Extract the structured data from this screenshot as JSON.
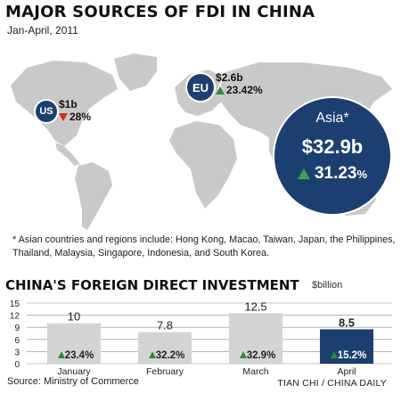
{
  "header": {
    "title": "MAJOR SOURCES OF FDI IN CHINA",
    "subtitle": "Jan-April, 2011"
  },
  "map": {
    "us": {
      "badge": "US",
      "amount": "$1b",
      "change": "28%",
      "direction": "down"
    },
    "eu": {
      "badge": "EU",
      "amount": "$2.6b",
      "change": "23.42%",
      "direction": "up"
    },
    "asia": {
      "region": "Asia*",
      "amount": "$32.9b",
      "change": "31.23",
      "change_unit": "%",
      "direction": "up"
    },
    "footnote": "* Asian countries and regions include: Hong Kong, Macao, Taiwan, Japan, the Philippines, Thailand, Malaysia, Singapore, Indonesia, and South Korea.",
    "colors": {
      "land": "#c9c9c9",
      "badge": "#1b3f70",
      "up": "#2e8b3a",
      "down": "#d22a1f"
    }
  },
  "chart_data": {
    "type": "bar",
    "title": "CHINA'S FOREIGN DIRECT INVESTMENT",
    "unit": "$billion",
    "categories": [
      "January",
      "February",
      "March",
      "April"
    ],
    "values": [
      10,
      7.8,
      12.5,
      8.5
    ],
    "value_labels": [
      "10",
      "7.8",
      "12.5",
      "8.5"
    ],
    "growth_labels": [
      "23.4%",
      "32.2%",
      "32.9%",
      "15.2%"
    ],
    "yticks": [
      "15",
      "12",
      "9",
      "6",
      "3",
      "0"
    ],
    "ylim": [
      0,
      15
    ],
    "grid": true,
    "bar_colors": [
      "#d4d4d4",
      "#d4d4d4",
      "#d4d4d4",
      "#1b3f70"
    ]
  },
  "footer": {
    "source": "Source: Ministry of Commerce",
    "credit": "TIAN CHI / CHINA DAILY"
  }
}
